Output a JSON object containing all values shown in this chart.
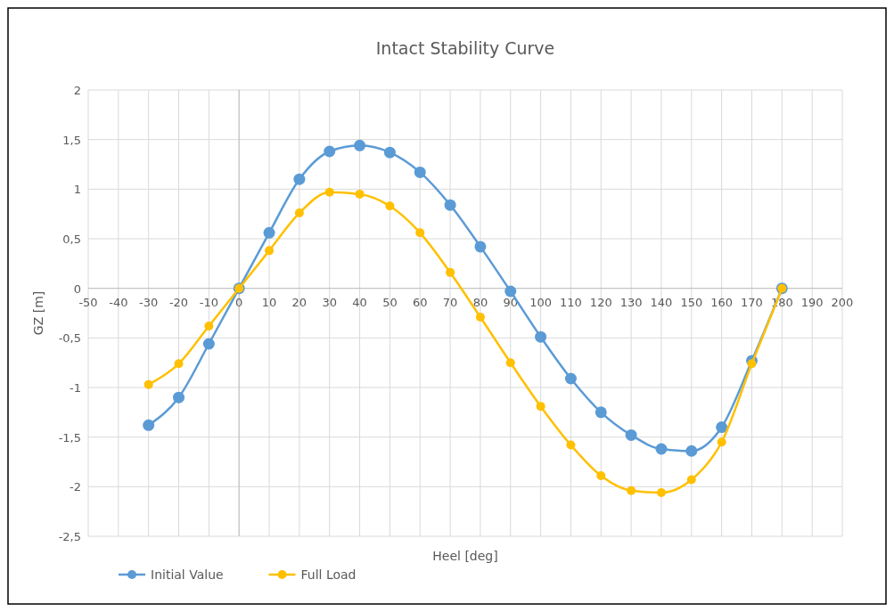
{
  "chart_data": {
    "type": "line",
    "title": "Intact Stability Curve",
    "xlabel": "Heel [deg]",
    "ylabel": "GZ [m]",
    "x": [
      -30,
      -20,
      -10,
      0,
      10,
      20,
      30,
      40,
      50,
      60,
      70,
      80,
      90,
      100,
      110,
      120,
      130,
      140,
      150,
      160,
      170,
      180
    ],
    "series": [
      {
        "name": "Initial Value",
        "color": "#5b9bd5",
        "values": [
          -1.38,
          -1.1,
          -0.56,
          0,
          0.56,
          1.1,
          1.38,
          1.44,
          1.37,
          1.17,
          0.84,
          0.42,
          -0.03,
          -0.49,
          -0.91,
          -1.25,
          -1.48,
          -1.62,
          -1.64,
          -1.4,
          -0.73,
          0
        ]
      },
      {
        "name": "Full Load",
        "color": "#ffc000",
        "values": [
          -0.97,
          -0.76,
          -0.38,
          0,
          0.38,
          0.76,
          0.97,
          0.95,
          0.83,
          0.56,
          0.16,
          -0.29,
          -0.75,
          -1.19,
          -1.58,
          -1.89,
          -2.04,
          -2.06,
          -1.93,
          -1.55,
          -0.76,
          0
        ]
      }
    ],
    "xlim": [
      -50,
      200
    ],
    "xticks": [
      -50,
      -40,
      -30,
      -20,
      -10,
      0,
      10,
      20,
      30,
      40,
      50,
      60,
      70,
      80,
      90,
      100,
      110,
      120,
      130,
      140,
      150,
      160,
      170,
      180,
      190,
      200
    ],
    "ylim": [
      -2.5,
      2
    ],
    "yticks": [
      {
        "value": -2.5,
        "label": "-2,5"
      },
      -2,
      {
        "value": -1.5,
        "label": "-1,5"
      },
      -1,
      {
        "value": -0.5,
        "label": "-0,5"
      },
      0,
      {
        "value": 0.5,
        "label": "0,5"
      },
      1,
      {
        "value": 1.5,
        "label": "1,5"
      },
      2
    ],
    "grid": true,
    "legend": "bottom left",
    "marker": "circle",
    "line_style": "solid"
  }
}
